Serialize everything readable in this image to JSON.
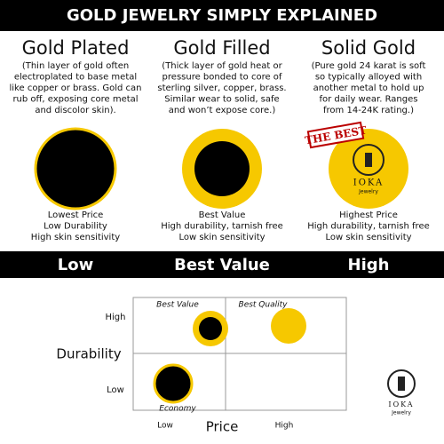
{
  "header": {
    "title": "GOLD JEWELRY SIMPLY EXPLAINED"
  },
  "columns": [
    {
      "title": "Gold Plated",
      "description": [
        "(Thin layer of gold often",
        "electroplated to base metal",
        "like copper or brass. Gold can",
        "rub off, exposing core metal",
        "and discolor skin)."
      ],
      "features": [
        "Lowest Price",
        "Low Durability",
        "High skin sensitivity"
      ]
    },
    {
      "title": "Gold Filled",
      "description": [
        "(Thick layer of gold heat or",
        "pressure bonded to core of",
        "sterling silver, copper, brass.",
        "Similar wear to solid, safe",
        "and won’t expose core.)"
      ],
      "features": [
        "Best Value",
        "High durability, tarnish free",
        "Low skin sensitivity"
      ]
    },
    {
      "title": "Solid Gold",
      "description": [
        "(Pure gold 24 karat is soft",
        "so typically alloyed with",
        "another metal to hold up",
        "for daily wear. Ranges",
        "from 14-24K rating.)"
      ],
      "features": [
        "Highest Price",
        "High durability, tarnish free",
        "Low skin sensitivity"
      ]
    }
  ],
  "badge": "THE BEST",
  "logo": {
    "name": "IOKA",
    "sub": "Jewelry"
  },
  "banner": [
    "Low",
    "Best Value",
    "High"
  ],
  "matrix": {
    "y_label": "Durability",
    "x_label": "Price",
    "y_high": "High",
    "y_low": "Low",
    "x_low": "Low",
    "x_high": "High",
    "best_value": "Best Value",
    "best_quality": "Best Quality",
    "economy": "Economy"
  }
}
